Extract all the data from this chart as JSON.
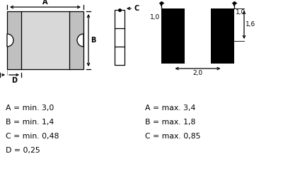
{
  "bg_color": "#ffffff",
  "line_color": "#000000",
  "fill_color": "#d8d8d8",
  "pad_color": "#c0c0c0",
  "dimensions_text": [
    "A = min. 3,0",
    "B = min. 1,4",
    "C = min. 0,48",
    "D = 0,25"
  ],
  "dimensions_text_right": [
    "A = max. 3,4",
    "B = max. 1,8",
    "C = max. 0,85"
  ]
}
